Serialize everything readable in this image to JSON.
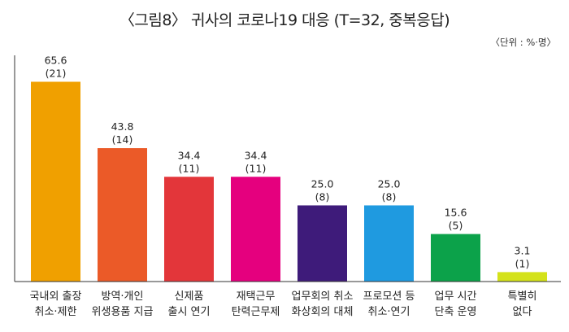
{
  "chart_data": {
    "type": "bar",
    "title": "〈그림8〉 귀사의 코로나19 대응 (T=32, 중복응답)",
    "unit_note": "〈단위 : %·명〉",
    "categories": [
      [
        "국내외 출장",
        "취소·제한"
      ],
      [
        "방역·개인",
        "위생용품 지급"
      ],
      [
        "신제품",
        "출시 연기"
      ],
      [
        "재택근무",
        "탄력근무제"
      ],
      [
        "업무회의 취소",
        "화상회의 대체"
      ],
      [
        "프로모션 등",
        "취소·연기"
      ],
      [
        "업무 시간",
        "단축 운영"
      ],
      [
        "특별히",
        "없다"
      ]
    ],
    "series": [
      {
        "values": [
          65.6,
          43.8,
          34.4,
          34.4,
          25.0,
          25.0,
          15.6,
          3.1
        ]
      }
    ],
    "value_labels": [
      "65.6",
      "43.8",
      "34.4",
      "34.4",
      "25.0",
      "25.0",
      "15.6",
      "3.1"
    ],
    "count_labels": [
      "(21)",
      "(14)",
      "(11)",
      "(11)",
      "(8)",
      "(8)",
      "(5)",
      "(1)"
    ],
    "colors": [
      "#F0A000",
      "#EB5A28",
      "#E3363A",
      "#E5007E",
      "#3E1B7A",
      "#1F9AE0",
      "#0CA24A",
      "#D4E21A"
    ],
    "ylim": [
      0,
      70
    ],
    "grid": false
  }
}
